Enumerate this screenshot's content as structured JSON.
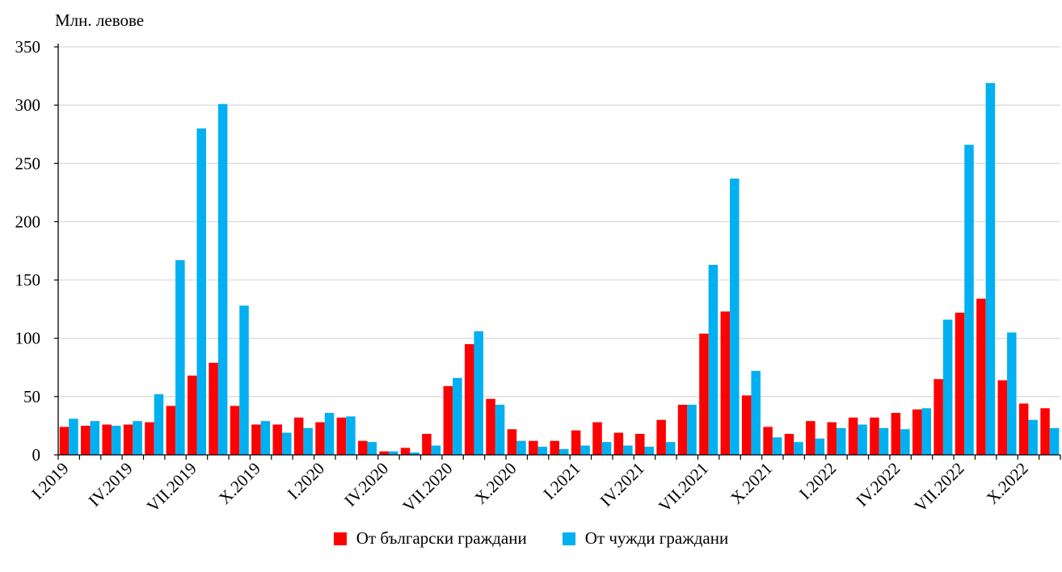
{
  "chart_data": {
    "type": "bar",
    "ylabel": "Млн. левове",
    "ylim": [
      0,
      350
    ],
    "yticks": [
      0,
      50,
      100,
      150,
      200,
      250,
      300,
      350
    ],
    "grid": "horizontal",
    "legend_position": "bottom",
    "categories": [
      "I.2019",
      "II.2019",
      "III.2019",
      "IV.2019",
      "V.2019",
      "VI.2019",
      "VII.2019",
      "VIII.2019",
      "IX.2019",
      "X.2019",
      "XI.2019",
      "XII.2019",
      "I.2020",
      "II.2020",
      "III.2020",
      "IV.2020",
      "V.2020",
      "VI.2020",
      "VII.2020",
      "VIII.2020",
      "IX.2020",
      "X.2020",
      "XI.2020",
      "XII.2020",
      "I.2021",
      "II.2021",
      "III.2021",
      "IV.2021",
      "V.2021",
      "VI.2021",
      "VII.2021",
      "VIII.2021",
      "IX.2021",
      "X.2021",
      "XI.2021",
      "XII.2021",
      "I.2022",
      "II.2022",
      "III.2022",
      "IV.2022",
      "V.2022",
      "VI.2022",
      "VII.2022",
      "VIII.2022",
      "IX.2022",
      "X.2022",
      "XI.2022"
    ],
    "tick_labels": [
      {
        "index": 0,
        "label": "I.2019"
      },
      {
        "index": 3,
        "label": "IV.2019"
      },
      {
        "index": 6,
        "label": "VII.2019"
      },
      {
        "index": 9,
        "label": "X.2019"
      },
      {
        "index": 12,
        "label": "I.2020"
      },
      {
        "index": 15,
        "label": "IV.2020"
      },
      {
        "index": 18,
        "label": "VII.2020"
      },
      {
        "index": 21,
        "label": "X.2020"
      },
      {
        "index": 24,
        "label": "I.2021"
      },
      {
        "index": 27,
        "label": "IV.2021"
      },
      {
        "index": 30,
        "label": "VII.2021"
      },
      {
        "index": 33,
        "label": "X.2021"
      },
      {
        "index": 36,
        "label": "I.2022"
      },
      {
        "index": 39,
        "label": "IV.2022"
      },
      {
        "index": 42,
        "label": "VII.2022"
      },
      {
        "index": 45,
        "label": "X.2022"
      }
    ],
    "series": [
      {
        "name": "От български граждани",
        "color": "#ff0000",
        "values": [
          24,
          25,
          26,
          26,
          28,
          42,
          68,
          79,
          42,
          26,
          26,
          32,
          28,
          32,
          12,
          3,
          6,
          18,
          59,
          95,
          48,
          22,
          12,
          12,
          21,
          28,
          19,
          18,
          30,
          43,
          104,
          123,
          51,
          24,
          18,
          29,
          28,
          32,
          32,
          36,
          39,
          65,
          122,
          134,
          64,
          44,
          40
        ]
      },
      {
        "name": "От чужди граждани",
        "color": "#00b0f0",
        "values": [
          31,
          29,
          25,
          29,
          52,
          167,
          280,
          301,
          128,
          29,
          19,
          23,
          36,
          33,
          11,
          3,
          2,
          8,
          66,
          106,
          43,
          12,
          7,
          5,
          8,
          11,
          8,
          7,
          11,
          43,
          163,
          237,
          72,
          15,
          11,
          14,
          23,
          26,
          23,
          22,
          40,
          116,
          266,
          319,
          105,
          30,
          23
        ]
      }
    ]
  }
}
